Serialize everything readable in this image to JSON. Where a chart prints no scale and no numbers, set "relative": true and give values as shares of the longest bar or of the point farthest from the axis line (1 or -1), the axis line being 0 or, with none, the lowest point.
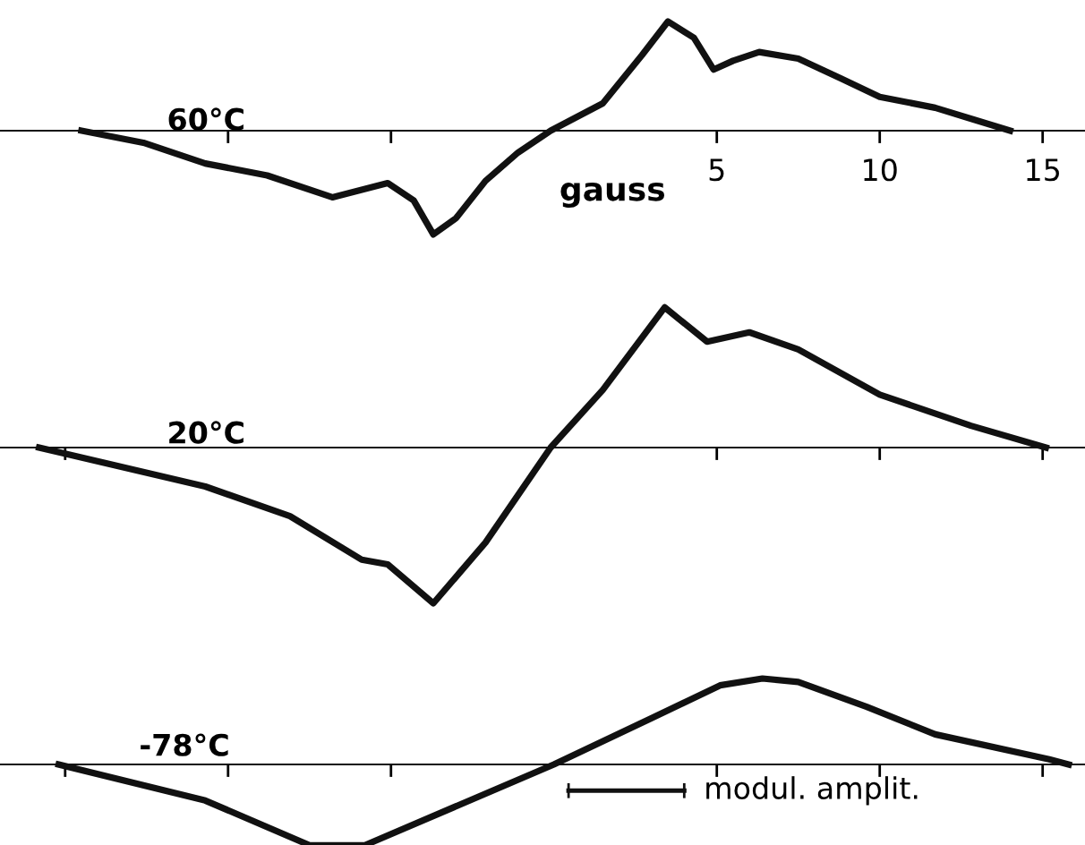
{
  "chart_data": [
    {
      "type": "line",
      "title": "60°C",
      "xlabel": "gauss",
      "relative": true,
      "xlim": [
        -17,
        16.3
      ],
      "xticks": [
        {
          "value": -10,
          "label": null
        },
        {
          "value": -5,
          "label": null
        },
        5,
        10,
        15
      ],
      "tick_labels": "x",
      "grid": false,
      "legend": false,
      "marker": "none",
      "line_style": "solid",
      "series": [
        {
          "color": "#111111",
          "x": [
            -14.5,
            -12.6,
            -10.7,
            -8.8,
            -6.8,
            -5.1,
            -4.3,
            -3.7,
            -3.0,
            -2.1,
            -1.1,
            -0.1,
            1.5,
            2.7,
            3.5,
            4.3,
            4.9,
            5.5,
            6.3,
            7.5,
            8.8,
            10.0,
            11.7,
            12.9,
            14.0
          ],
          "values": [
            0,
            -0.11,
            -0.3,
            -0.41,
            -0.61,
            -0.48,
            -0.64,
            -0.95,
            -0.8,
            -0.46,
            -0.2,
            0,
            0.25,
            0.69,
            1,
            0.85,
            0.56,
            0.64,
            0.72,
            0.66,
            0.48,
            0.31,
            0.21,
            0.1,
            0
          ]
        }
      ]
    },
    {
      "type": "line",
      "title": "20°C",
      "relative": true,
      "xlim": [
        -17,
        16.3
      ],
      "xticks": [
        {
          "value": -15,
          "label": null
        },
        {
          "value": 5,
          "label": null
        },
        {
          "value": 10,
          "label": null
        },
        {
          "value": 15,
          "label": null
        }
      ],
      "tick_labels": false,
      "grid": false,
      "legend": false,
      "marker": "none",
      "line_style": "solid",
      "series": [
        {
          "color": "#111111",
          "x": [
            -15.8,
            -10.7,
            -8.1,
            -5.9,
            -5.1,
            -3.7,
            -2.1,
            -0.1,
            1.5,
            3.4,
            4.7,
            6.0,
            7.5,
            10.0,
            12.8,
            15.1
          ],
          "values": [
            0,
            -0.25,
            -0.44,
            -0.72,
            -0.75,
            -1,
            -0.61,
            0,
            0.37,
            0.9,
            0.68,
            0.74,
            0.63,
            0.34,
            0.14,
            0
          ]
        }
      ]
    },
    {
      "type": "line",
      "title": "-78°C",
      "relative": true,
      "xlim": [
        -17,
        16.3
      ],
      "xticks": [
        {
          "value": -15,
          "label": null
        },
        {
          "value": -10,
          "label": null
        },
        {
          "value": -5,
          "label": null
        },
        {
          "value": 5,
          "label": null
        },
        {
          "value": 10,
          "label": null
        },
        {
          "value": 15,
          "label": null
        }
      ],
      "tick_labels": false,
      "grid": false,
      "legend": false,
      "marker": "none",
      "line_style": "solid",
      "annotations": [
        "modul. amplit."
      ],
      "series": [
        {
          "color": "#111111",
          "x": [
            -15.2,
            -10.7,
            -7.5,
            -5.8,
            0,
            3.0,
            5.1,
            6.4,
            7.5,
            9.6,
            11.7,
            15.2,
            15.8
          ],
          "values": [
            0,
            -0.42,
            -0.94,
            -0.94,
            0,
            0.54,
            0.92,
            1,
            0.96,
            0.67,
            0.35,
            0.06,
            0
          ]
        }
      ]
    }
  ]
}
